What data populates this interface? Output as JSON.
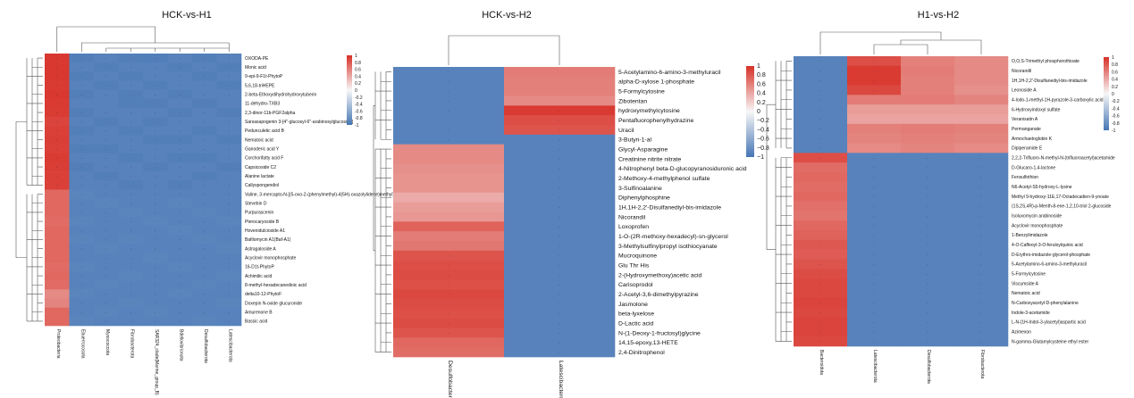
{
  "chart_data": [
    {
      "type": "heatmap",
      "title": "HCK-vs-H1",
      "columns": [
        "Proteobacteria",
        "Ebuerrocosota",
        "Myxococcota",
        "Fibrobacterota",
        "SAR324_clade(Marine_group_B)",
        "Bdellovibrionota",
        "Desulfobacterota",
        "Latescibacterota"
      ],
      "rows": [
        "OXODA-PE",
        "Monic acid",
        "9-epi-9-F1t-PhytoP",
        "5,6,18-triHEPE",
        "2-beta-Ethoxydihydrohydroxytuberin",
        "11-dehydro-TXB3",
        "2,3-dinor-11b-PGF2alpha",
        "Sarsasapogenin 3-[4''-glucosyl-6''-arabinosylglucoside]",
        "Pedunculetic acid B",
        "Nematoic acid",
        "Ganoderic acid Y",
        "Corchorifatty acid F",
        "Capsicoside C2",
        "Alanine lactate",
        "Callyspongendiol",
        "Valine, 3-mercapto-N-[(5-oxo-2-(phenylmethyl)-4(5H)-oxazolylidene)methyl]-",
        "Stevebin D",
        "Purpurascenin",
        "Pterocaryoside B",
        "Hovenidulcioside A1",
        "Bafilomycin A1(Baf-A1)",
        "Astragaloside A",
        "Acyclovir monophosphate",
        "16-D1t-PhytoP",
        "Achimilic acid",
        "8-methyl-hexadecanedioic acid",
        "delta10-12-PhytoF",
        "Doxepin N-oxide glucuronide",
        "Amurenone B",
        "Bassic acid"
      ],
      "values": [
        [
          0.96,
          -0.92,
          -0.9,
          -0.92,
          -0.93,
          -0.9,
          -0.92,
          -0.9
        ],
        [
          0.96,
          -0.9,
          -0.92,
          -0.9,
          -0.9,
          -0.92,
          -0.9,
          -0.92
        ],
        [
          0.96,
          -0.92,
          -0.9,
          -0.92,
          -0.9,
          -0.9,
          -0.92,
          -0.9
        ],
        [
          0.95,
          -0.9,
          -0.92,
          -0.9,
          -0.92,
          -0.9,
          -0.9,
          -0.92
        ],
        [
          0.96,
          -0.92,
          -0.9,
          -0.92,
          -0.9,
          -0.92,
          -0.9,
          -0.9
        ],
        [
          0.95,
          -0.9,
          -0.9,
          -0.92,
          -0.92,
          -0.9,
          -0.92,
          -0.9
        ],
        [
          0.94,
          -0.92,
          -0.9,
          -0.9,
          -0.9,
          -0.92,
          -0.9,
          -0.92
        ],
        [
          0.9,
          -0.9,
          -0.92,
          -0.9,
          -0.92,
          -0.9,
          -0.9,
          -0.9
        ],
        [
          0.92,
          -0.92,
          -0.9,
          -0.92,
          -0.9,
          -0.9,
          -0.92,
          -0.9
        ],
        [
          0.93,
          -0.9,
          -0.9,
          -0.9,
          -0.92,
          -0.92,
          -0.9,
          -0.92
        ],
        [
          0.92,
          -0.92,
          -0.92,
          -0.9,
          -0.9,
          -0.9,
          -0.9,
          -0.9
        ],
        [
          0.94,
          -0.9,
          -0.9,
          -0.92,
          -0.9,
          -0.92,
          -0.92,
          -0.9
        ],
        [
          0.93,
          -0.92,
          -0.9,
          -0.9,
          -0.92,
          -0.9,
          -0.9,
          -0.92
        ],
        [
          0.92,
          -0.9,
          -0.92,
          -0.9,
          -0.9,
          -0.9,
          -0.92,
          -0.9
        ],
        [
          0.92,
          -0.9,
          -0.9,
          -0.92,
          -0.9,
          -0.92,
          -0.9,
          -0.9
        ],
        [
          0.72,
          -0.88,
          -0.9,
          -0.9,
          -0.9,
          -0.9,
          -0.9,
          -0.9
        ],
        [
          0.72,
          -0.9,
          -0.88,
          -0.9,
          -0.9,
          -0.88,
          -0.9,
          -0.9
        ],
        [
          0.72,
          -0.9,
          -0.9,
          -0.88,
          -0.9,
          -0.9,
          -0.88,
          -0.9
        ],
        [
          0.7,
          -0.88,
          -0.9,
          -0.9,
          -0.88,
          -0.9,
          -0.9,
          -0.88
        ],
        [
          0.72,
          -0.9,
          -0.9,
          -0.9,
          -0.9,
          -0.88,
          -0.9,
          -0.9
        ],
        [
          0.72,
          -0.88,
          -0.9,
          -0.88,
          -0.9,
          -0.9,
          -0.88,
          -0.9
        ],
        [
          0.72,
          -0.9,
          -0.88,
          -0.9,
          -0.9,
          -0.9,
          -0.9,
          -0.88
        ],
        [
          0.72,
          -0.9,
          -0.9,
          -0.9,
          -0.88,
          -0.9,
          -0.9,
          -0.9
        ],
        [
          0.7,
          -0.88,
          -0.9,
          -0.9,
          -0.9,
          -0.88,
          -0.9,
          -0.9
        ],
        [
          0.72,
          -0.9,
          -0.9,
          -0.88,
          -0.9,
          -0.9,
          -0.9,
          -0.88
        ],
        [
          0.7,
          -0.9,
          -0.88,
          -0.9,
          -0.9,
          -0.9,
          -0.88,
          -0.9
        ],
        [
          0.55,
          -0.88,
          -0.9,
          -0.9,
          -0.9,
          -0.88,
          -0.9,
          -0.9
        ],
        [
          0.58,
          -0.9,
          -0.9,
          -0.88,
          -0.9,
          -0.9,
          -0.9,
          -0.88
        ],
        [
          0.72,
          -0.9,
          -0.88,
          -0.9,
          -0.88,
          -0.9,
          -0.9,
          -0.9
        ],
        [
          0.72,
          -0.88,
          -0.9,
          -0.9,
          -0.9,
          -0.9,
          -0.88,
          -0.9
        ]
      ],
      "legend": {
        "max": 1,
        "min": -1,
        "ticks": [
          "1",
          "0.8",
          "0.6",
          "0.4",
          "0.2",
          "0",
          "-0.2",
          "-0.4",
          "-0.6",
          "-0.8",
          "-1"
        ]
      },
      "colormap": {
        "low": "#4575b4",
        "mid": "#f7f7f7",
        "high": "#d73027"
      }
    },
    {
      "type": "heatmap",
      "title": "HCK-vs-H2",
      "columns": [
        "Desulfobacterota",
        "Latescibacterota"
      ],
      "rows": [
        "5-Acetylamino-6-amino-3-methyluracil",
        "alpha-D-xylose 1-phosphate",
        "5-Formylcytosine",
        "Zibotentan",
        "hydroxymethylcytosine",
        "Pentafluorophenylhydrazine",
        "Uracil",
        "3-Butyn-1-al",
        "Glycyl-Asparagine",
        "Creatinine nitrite nitrate",
        "4-Nitrophenyl beta-D-glucopyranosiduronic acid",
        "2-Methoxy-4-methylphenol sulfate",
        "3-Sulfinoalanine",
        "Diphenylphosphine",
        "1H,1H-2,2'-Disulfanediyl-bis-imidazole",
        "Nicorandil",
        "Loxoprofen",
        "1-O-(2R-methoxy-hexadecyl)-sn-glycerol",
        "3-Methylsulfinylpropyl isothiocyanate",
        "Mucroquinone",
        "Glu Thr His",
        "2-(Hydroxymethoxy)acetic acid",
        "Carisoprodol",
        "2-Acetyl-3,6-dimethylpyrazine",
        "Jasmolone",
        "beta-lyxelose",
        "D-Lactic acid",
        "N-(1-Deoxy-1-fructosyl)glycine",
        "14,15-epoxy,13-HETE",
        "2,4-Dinitrophenol"
      ],
      "values": [
        [
          -0.9,
          0.62
        ],
        [
          -0.9,
          0.6
        ],
        [
          -0.9,
          0.6
        ],
        [
          -0.9,
          0.55
        ],
        [
          -0.9,
          0.95
        ],
        [
          -0.9,
          0.85
        ],
        [
          -0.9,
          0.82
        ],
        [
          -0.9,
          -0.9
        ],
        [
          0.55,
          -0.9
        ],
        [
          0.55,
          -0.9
        ],
        [
          0.52,
          -0.9
        ],
        [
          0.5,
          -0.9
        ],
        [
          0.5,
          -0.9
        ],
        [
          0.38,
          -0.9
        ],
        [
          0.45,
          -0.9
        ],
        [
          0.48,
          -0.9
        ],
        [
          0.75,
          -0.9
        ],
        [
          0.62,
          -0.9
        ],
        [
          0.65,
          -0.9
        ],
        [
          0.82,
          -0.9
        ],
        [
          0.85,
          -0.9
        ],
        [
          0.86,
          -0.9
        ],
        [
          0.84,
          -0.9
        ],
        [
          0.88,
          -0.9
        ],
        [
          0.86,
          -0.9
        ],
        [
          0.84,
          -0.9
        ],
        [
          0.86,
          -0.9
        ],
        [
          0.82,
          -0.9
        ],
        [
          0.72,
          -0.9
        ],
        [
          0.7,
          -0.9
        ]
      ],
      "legend": {
        "max": 1,
        "min": -1,
        "ticks": [
          "1",
          "0.8",
          "0.6",
          "0.4",
          "0.2",
          "0",
          "−0.2",
          "−0.4",
          "−0.6",
          "−0.8",
          "−1"
        ]
      },
      "colormap": {
        "low": "#4575b4",
        "mid": "#f7f7f7",
        "high": "#d73027"
      }
    },
    {
      "type": "heatmap",
      "title": "H1-vs-H2",
      "columns": [
        "Bacteroidota",
        "Latescibacterota",
        "Desulfobacterota",
        "Fibrobacterota"
      ],
      "rows": [
        "O,O,S-Trimethyl phosphorothioate",
        "Nicorandil",
        "1H,1H-2,2'-Disulfanediyl-bis-imidazole",
        "Leonoside A",
        "4-Iodo-1-methyl-1H-pyrazole-3-carboxylic acid",
        "6-Hydroxyindoxyl sulfate",
        "Veranisatin A",
        "Permanganate",
        "Armochaetoglobin K",
        "Dipiperamide E",
        "2,2,2-Trifluoro-N-methyl-N-(trifluoroacetyl)acetamide",
        "D-Glucaro-1,4-lactone",
        "Fensulfothion",
        "N6-Acetyl-S5-hydroxy-L-lysine",
        "Methyl 9-hydroxy-11E,17-Octadecadien-9-ynoate",
        "(1S,2S,4R)-p-Menth-8-ene-1,2,10-triol 2-glucoside",
        "Isoluxomycin arabinoside",
        "Acyclovir monophosphate",
        "1-Benzylimidazole",
        "4-O-Caffeoyl-3-O-feruloylquinic acid",
        "D-Erythro-imidazole-glycerol-phosphate",
        "5-Acetylamino-6-amino-3-methyluracil",
        "5-Formylcytosine",
        "Viscumside A",
        "Nematoic acid",
        "N-Carboxyacetyl-D-phenylalanine",
        "Indole-3-acetamide",
        "L-N-(1H-Indol-3-ylacetyl)aspartic acid",
        "Azimexon",
        "N-gamma-Glutamylcysteine ethyl ester"
      ],
      "values": [
        [
          -0.9,
          0.85,
          0.6,
          0.55
        ],
        [
          -0.9,
          0.95,
          0.62,
          0.55
        ],
        [
          -0.9,
          0.95,
          0.6,
          0.55
        ],
        [
          -0.9,
          0.88,
          0.6,
          0.52
        ],
        [
          -0.9,
          0.62,
          0.62,
          0.58
        ],
        [
          -0.9,
          0.45,
          0.45,
          0.45
        ],
        [
          -0.9,
          0.42,
          0.42,
          0.42
        ],
        [
          -0.9,
          0.6,
          0.62,
          0.6
        ],
        [
          -0.9,
          0.58,
          0.6,
          0.58
        ],
        [
          -0.9,
          0.55,
          0.58,
          0.55
        ],
        [
          0.85,
          -0.9,
          -0.9,
          -0.9
        ],
        [
          0.7,
          -0.9,
          -0.9,
          -0.9
        ],
        [
          0.72,
          -0.9,
          -0.9,
          -0.9
        ],
        [
          0.7,
          -0.9,
          -0.9,
          -0.9
        ],
        [
          0.72,
          -0.9,
          -0.9,
          -0.9
        ],
        [
          0.68,
          -0.9,
          -0.9,
          -0.9
        ],
        [
          0.66,
          -0.9,
          -0.9,
          -0.9
        ],
        [
          0.72,
          -0.9,
          -0.9,
          -0.9
        ],
        [
          0.75,
          -0.9,
          -0.9,
          -0.9
        ],
        [
          0.8,
          -0.9,
          -0.9,
          -0.9
        ],
        [
          0.78,
          -0.9,
          -0.9,
          -0.9
        ],
        [
          0.82,
          -0.9,
          -0.9,
          -0.9
        ],
        [
          0.86,
          -0.9,
          -0.9,
          -0.9
        ],
        [
          0.88,
          -0.9,
          -0.9,
          -0.9
        ],
        [
          0.88,
          -0.9,
          -0.9,
          -0.9
        ],
        [
          0.9,
          -0.9,
          -0.9,
          -0.9
        ],
        [
          0.88,
          -0.9,
          -0.9,
          -0.9
        ],
        [
          0.9,
          -0.9,
          -0.9,
          -0.9
        ],
        [
          0.9,
          -0.9,
          -0.9,
          -0.9
        ],
        [
          0.88,
          -0.9,
          -0.9,
          -0.9
        ]
      ],
      "legend": {
        "max": 1,
        "min": -1,
        "ticks": [
          "1",
          "0.8",
          "0.6",
          "0.4",
          "0.2",
          "0",
          "-0.2",
          "-0.4",
          "-0.6",
          "-0.8",
          "-1"
        ]
      },
      "colormap": {
        "low": "#4575b4",
        "mid": "#f7f7f7",
        "high": "#d73027"
      }
    }
  ]
}
